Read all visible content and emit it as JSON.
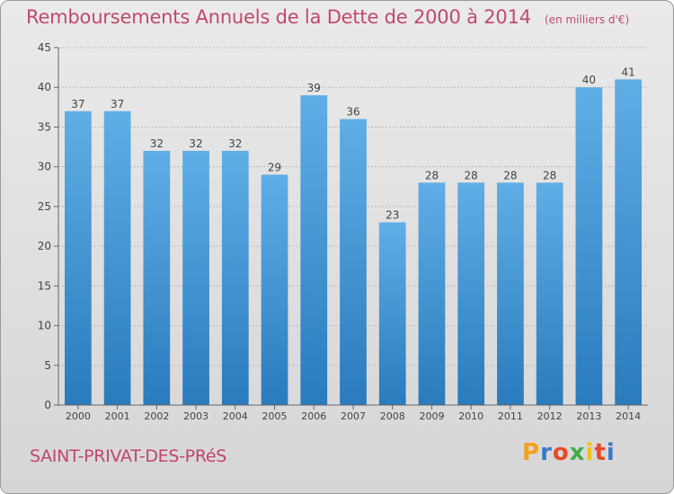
{
  "header": {
    "title": "Remboursements Annuels de la Dette de 2000 à 2014",
    "unit": "(en milliers d'€)"
  },
  "footer": {
    "commune": "SAINT-PRIVAT-DES-PRéS",
    "brand_letters": [
      "P",
      "r",
      "o",
      "x",
      "i",
      "t",
      "i"
    ],
    "brand_colors": [
      "#f4a11a",
      "#3a78c9",
      "#e94a26",
      "#3fae49",
      "#f0c019",
      "#e94a26",
      "#3a78c9"
    ]
  },
  "colors": {
    "bar_light": "#5faee6",
    "bar_dark": "#2a7bbd",
    "axis": "#666666",
    "grid": "#bbbbbb",
    "label": "#444444"
  },
  "chart_data": {
    "type": "bar",
    "categories": [
      "2000",
      "2001",
      "2002",
      "2003",
      "2004",
      "2005",
      "2006",
      "2007",
      "2008",
      "2009",
      "2010",
      "2011",
      "2012",
      "2013",
      "2014"
    ],
    "values": [
      37,
      37,
      32,
      32,
      32,
      29,
      39,
      36,
      23,
      28,
      28,
      28,
      28,
      40,
      41
    ],
    "ylim": [
      0,
      45
    ],
    "yticks": [
      0,
      5,
      10,
      15,
      20,
      25,
      30,
      35,
      40,
      45
    ],
    "grid": true,
    "data_labels": true
  }
}
